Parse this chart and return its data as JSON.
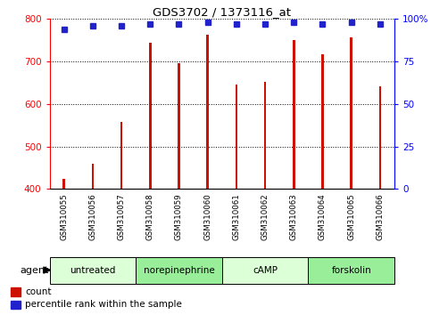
{
  "title": "GDS3702 / 1373116_at",
  "samples": [
    "GSM310055",
    "GSM310056",
    "GSM310057",
    "GSM310058",
    "GSM310059",
    "GSM310060",
    "GSM310061",
    "GSM310062",
    "GSM310063",
    "GSM310064",
    "GSM310065",
    "GSM310066"
  ],
  "counts": [
    423,
    460,
    558,
    744,
    695,
    763,
    645,
    651,
    750,
    717,
    756,
    642
  ],
  "percentiles": [
    94,
    96,
    96,
    97,
    97,
    98,
    97,
    97,
    98,
    97,
    98,
    97
  ],
  "bar_color": "#cc1100",
  "dot_color": "#2222cc",
  "ylim_left": [
    400,
    800
  ],
  "ylim_right": [
    0,
    100
  ],
  "yticks_left": [
    400,
    500,
    600,
    700,
    800
  ],
  "yticks_right": [
    0,
    25,
    50,
    75,
    100
  ],
  "ytick_labels_right": [
    "0",
    "25",
    "50",
    "75",
    "100%"
  ],
  "groups": [
    {
      "label": "untreated",
      "start": 0,
      "end": 3
    },
    {
      "label": "norepinephrine",
      "start": 3,
      "end": 6
    },
    {
      "label": "cAMP",
      "start": 6,
      "end": 9
    },
    {
      "label": "forskolin",
      "start": 9,
      "end": 12
    }
  ],
  "group_colors": [
    "#ddffd8",
    "#99ee99",
    "#ddffd8",
    "#99ee99"
  ],
  "agent_label": "agent",
  "legend_count_label": "count",
  "legend_pct_label": "percentile rank within the sample",
  "sample_bg": "#cccccc",
  "bar_width": 0.08
}
